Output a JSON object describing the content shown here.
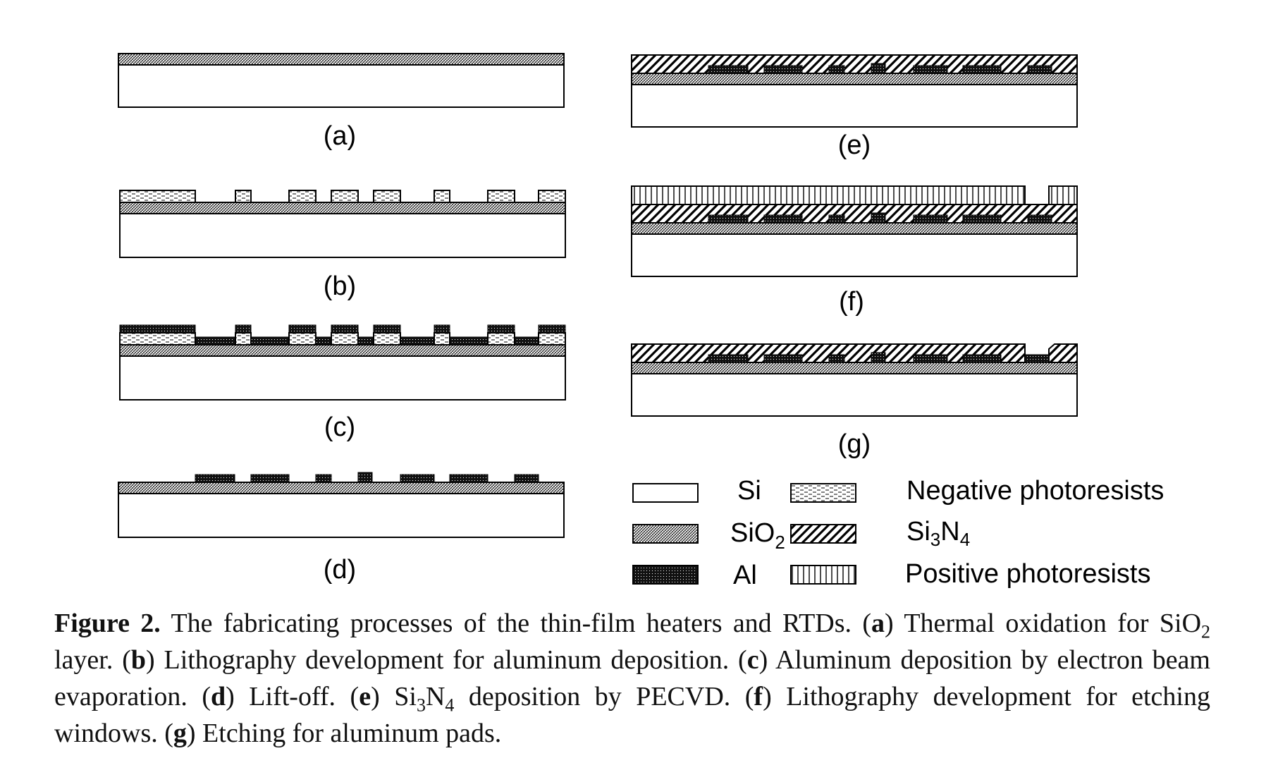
{
  "panels": [
    {
      "id": "a",
      "label": "(a)"
    },
    {
      "id": "b",
      "label": "(b)"
    },
    {
      "id": "c",
      "label": "(c)"
    },
    {
      "id": "d",
      "label": "(d)"
    },
    {
      "id": "e",
      "label": "(e)"
    },
    {
      "id": "f",
      "label": "(f)"
    },
    {
      "id": "g",
      "label": "(g)"
    }
  ],
  "legend": {
    "si": "Si",
    "sio2_main": "SiO",
    "sio2_sub": "2",
    "al": "Al",
    "neg_pr": "Negative photoresists",
    "si3n4_a": "Si",
    "si3n4_sub1": "3",
    "si3n4_b": "N",
    "si3n4_sub2": "4",
    "pos_pr": "Positive photoresists"
  },
  "caption": {
    "fig": "Figure 2.",
    "intro": " The fabricating processes of the thin-film heaters and RTDs. (",
    "a": "a",
    "a_text": ") Thermal oxidation for SiO",
    "a_sub": "2",
    "a_tail": " layer. (",
    "b": "b",
    "b_text": ") Lithography development for aluminum deposition. (",
    "c": "c",
    "c_text": ") Aluminum deposition by electron beam evaporation. (",
    "d": "d",
    "d_text": ") Lift-off. (",
    "e": "e",
    "e_text": ") Si",
    "e_sub1": "3",
    "e_text2": "N",
    "e_sub2": "4",
    "e_tail": " deposition by PECVD. (",
    "f": "f",
    "f_text": ") Lithography development for etching windows. (",
    "g": "g",
    "g_text": ") Etching for aluminum pads."
  },
  "colors": {
    "line": "#000000",
    "background": "#ffffff"
  }
}
